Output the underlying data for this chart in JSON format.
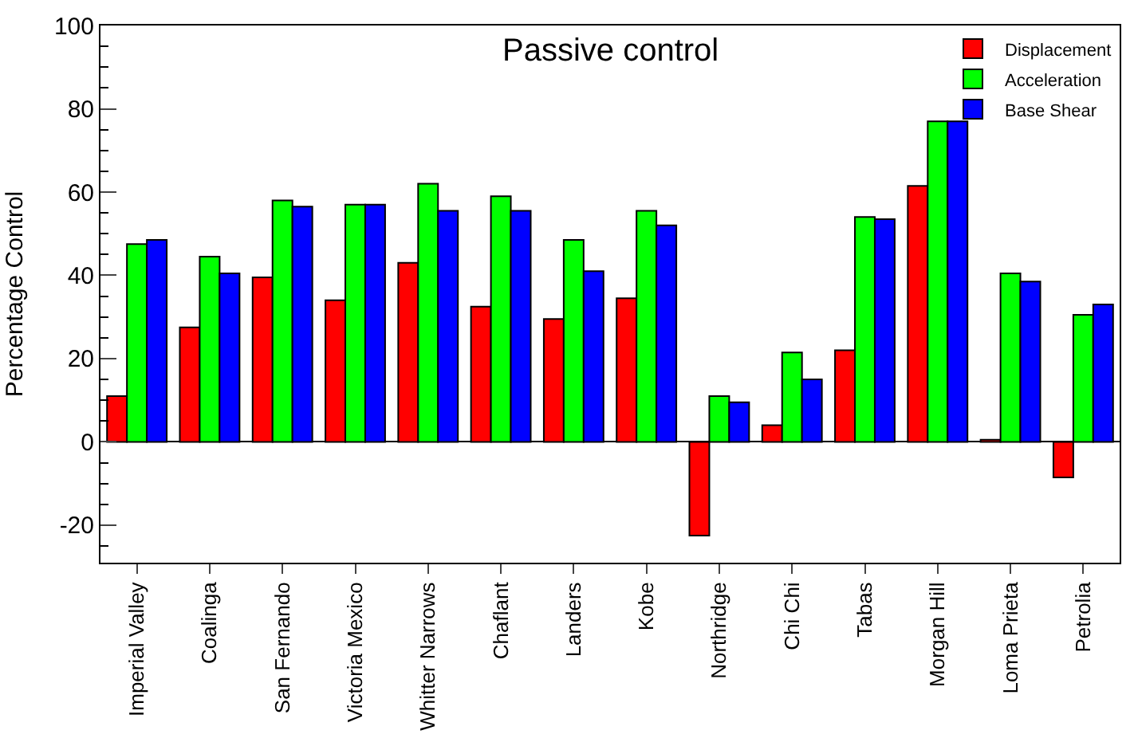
{
  "chart_data": {
    "type": "bar",
    "title": "Passive control",
    "ylabel": "Percentage Control",
    "categories": [
      "Imperial Valley",
      "Coalinga",
      "San Fernando",
      "Victoria Mexico",
      "Whitter Narrows",
      "Chaflant",
      "Landers",
      "Kobe",
      "Northridge",
      "Chi Chi",
      "Tabas",
      "Morgan Hill",
      "Loma Prieta",
      "Petrolia"
    ],
    "series": [
      {
        "name": "Displacement",
        "color": "#ff0000",
        "values": [
          11,
          27.5,
          39.5,
          34,
          43,
          32.5,
          29.5,
          34.5,
          -22.5,
          4,
          22,
          61.5,
          0.5,
          -8.5
        ]
      },
      {
        "name": "Acceleration",
        "color": "#00ff00",
        "values": [
          47.5,
          44.5,
          58,
          57,
          62,
          59,
          48.5,
          55.5,
          11,
          21.5,
          54,
          77,
          40.5,
          30.5
        ]
      },
      {
        "name": "Base Shear",
        "color": "#0000ff",
        "values": [
          48.5,
          40.5,
          56.5,
          57,
          55.5,
          55.5,
          41,
          52,
          9.5,
          15,
          53.5,
          77,
          38.5,
          33
        ]
      }
    ],
    "ylim": [
      -29,
      100
    ],
    "yticks": [
      -20,
      0,
      20,
      40,
      60,
      80,
      100
    ],
    "legend": "top right"
  }
}
